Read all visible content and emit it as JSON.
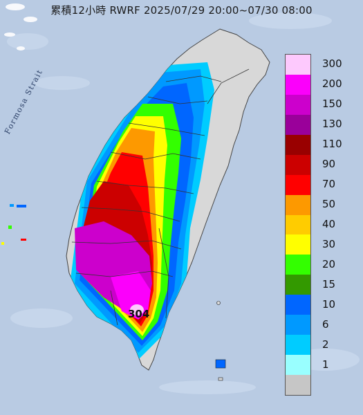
{
  "title": "累積12小時 RWRF 2025/07/29 20:00~07/30 08:00",
  "map": {
    "strait_label": "Formosa Strait",
    "max_value_label": "304",
    "sea_color": "#b9cbe3",
    "land_color": "#d8d8d8"
  },
  "legend": {
    "levels": [
      {
        "label": "300",
        "color": "#fdc9fd"
      },
      {
        "label": "200",
        "color": "#fb00fb"
      },
      {
        "label": "150",
        "color": "#cc00cc"
      },
      {
        "label": "130",
        "color": "#9a009a"
      },
      {
        "label": "110",
        "color": "#990000"
      },
      {
        "label": "90",
        "color": "#cc0000"
      },
      {
        "label": "70",
        "color": "#ff0000"
      },
      {
        "label": "50",
        "color": "#fd9900"
      },
      {
        "label": "40",
        "color": "#ffcc00"
      },
      {
        "label": "30",
        "color": "#ffff00"
      },
      {
        "label": "20",
        "color": "#33ff00"
      },
      {
        "label": "15",
        "color": "#339900"
      },
      {
        "label": "10",
        "color": "#0066ff"
      },
      {
        "label": "6",
        "color": "#0099ff"
      },
      {
        "label": "2",
        "color": "#00ccff"
      },
      {
        "label": "1",
        "color": "#99ffff"
      },
      {
        "label": "",
        "color": "#c6c6c6"
      }
    ]
  }
}
